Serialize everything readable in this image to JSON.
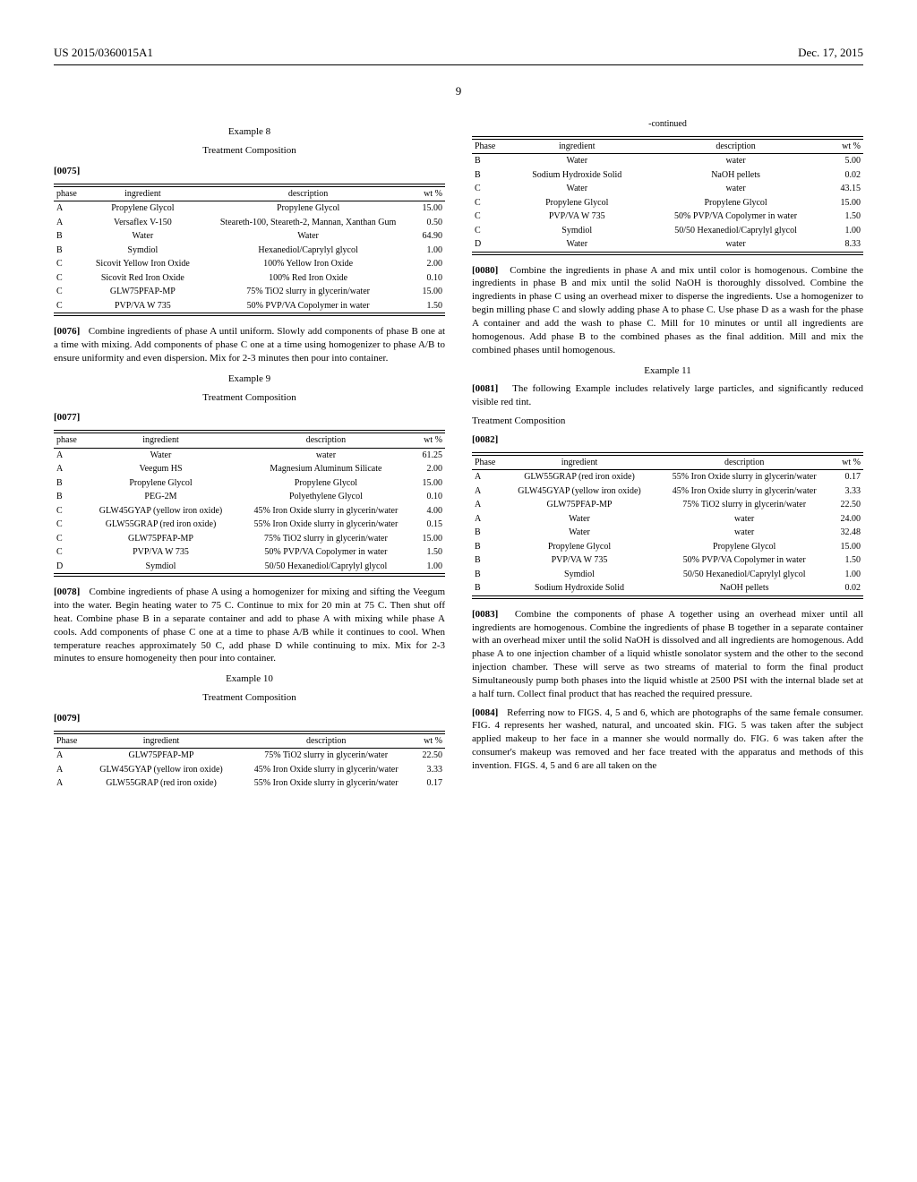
{
  "header": {
    "pub_number": "US 2015/0360015A1",
    "date": "Dec. 17, 2015",
    "page_number": "9"
  },
  "col1": {
    "ex8": {
      "title": "Example 8",
      "sub": "Treatment Composition",
      "para_num": "[0075]",
      "headers": [
        "phase",
        "ingredient",
        "description",
        "wt %"
      ],
      "rows": [
        [
          "A",
          "Propylene Glycol",
          "Propylene Glycol",
          "15.00"
        ],
        [
          "A",
          "Versaflex V-150",
          "Steareth-100, Steareth-2, Mannan, Xanthan Gum",
          "0.50"
        ],
        [
          "B",
          "Water",
          "Water",
          "64.90"
        ],
        [
          "B",
          "Symdiol",
          "Hexanediol/Caprylyl glycol",
          "1.00"
        ],
        [
          "C",
          "Sicovit Yellow Iron Oxide",
          "100% Yellow Iron Oxide",
          "2.00"
        ],
        [
          "C",
          "Sicovit Red Iron Oxide",
          "100% Red Iron Oxide",
          "0.10"
        ],
        [
          "C",
          "GLW75PFAP-MP",
          "75% TiO2 slurry in glycerin/water",
          "15.00"
        ],
        [
          "C",
          "PVP/VA W 735",
          "50% PVP/VA Copolymer in water",
          "1.50"
        ]
      ],
      "para0076_num": "[0076]",
      "para0076": "Combine ingredients of phase A until uniform. Slowly add components of phase B one at a time with mixing. Add components of phase C one at a time using homogenizer to phase A/B to ensure uniformity and even dispersion. Mix for 2-3 minutes then pour into container."
    },
    "ex9": {
      "title": "Example 9",
      "sub": "Treatment Composition",
      "para_num": "[0077]",
      "headers": [
        "phase",
        "ingredient",
        "description",
        "wt %"
      ],
      "rows": [
        [
          "A",
          "Water",
          "water",
          "61.25"
        ],
        [
          "A",
          "Veegum HS",
          "Magnesium Aluminum Silicate",
          "2.00"
        ],
        [
          "B",
          "Propylene Glycol",
          "Propylene Glycol",
          "15.00"
        ],
        [
          "B",
          "PEG-2M",
          "Polyethylene Glycol",
          "0.10"
        ],
        [
          "C",
          "GLW45GYAP (yellow iron oxide)",
          "45% Iron Oxide slurry in glycerin/water",
          "4.00"
        ],
        [
          "C",
          "GLW55GRAP (red iron oxide)",
          "55% Iron Oxide slurry in glycerin/water",
          "0.15"
        ],
        [
          "C",
          "GLW75PFAP-MP",
          "75% TiO2 slurry in glycerin/water",
          "15.00"
        ],
        [
          "C",
          "PVP/VA W 735",
          "50% PVP/VA Copolymer in water",
          "1.50"
        ],
        [
          "D",
          "Symdiol",
          "50/50 Hexanediol/Caprylyl glycol",
          "1.00"
        ]
      ],
      "para0078_num": "[0078]",
      "para0078": "Combine ingredients of phase A using a homogenizer for mixing and sifting the Veegum into the water. Begin heating water to 75 C. Continue to mix for 20 min at 75 C. Then shut off heat. Combine phase B in a separate container and add to phase A with mixing while phase A cools. Add components of phase C one at a time to phase A/B while it continues to cool. When temperature reaches approximately 50 C, add phase D while continuing to mix. Mix for 2-3 minutes to ensure homogeneity then pour into container."
    },
    "ex10": {
      "title": "Example 10",
      "sub": "Treatment Composition",
      "para_num": "[0079]",
      "headers": [
        "Phase",
        "ingredient",
        "description",
        "wt %"
      ],
      "rows": [
        [
          "A",
          "GLW75PFAP-MP",
          "75% TiO2 slurry in glycerin/water",
          "22.50"
        ],
        [
          "A",
          "GLW45GYAP (yellow iron oxide)",
          "45% Iron Oxide slurry in glycerin/water",
          "3.33"
        ],
        [
          "A",
          "GLW55GRAP (red iron oxide)",
          "55% Iron Oxide slurry in glycerin/water",
          "0.17"
        ]
      ]
    }
  },
  "col2": {
    "cont": {
      "label": "-continued",
      "headers": [
        "Phase",
        "ingredient",
        "description",
        "wt %"
      ],
      "rows": [
        [
          "B",
          "Water",
          "water",
          "5.00"
        ],
        [
          "B",
          "Sodium Hydroxide Solid",
          "NaOH pellets",
          "0.02"
        ],
        [
          "C",
          "Water",
          "water",
          "43.15"
        ],
        [
          "C",
          "Propylene Glycol",
          "Propylene Glycol",
          "15.00"
        ],
        [
          "C",
          "PVP/VA W 735",
          "50% PVP/VA Copolymer in water",
          "1.50"
        ],
        [
          "C",
          "Symdiol",
          "50/50 Hexanediol/Caprylyl glycol",
          "1.00"
        ],
        [
          "D",
          "Water",
          "water",
          "8.33"
        ]
      ]
    },
    "para0080_num": "[0080]",
    "para0080": "Combine the ingredients in phase A and mix until color is homogenous. Combine the ingredients in phase B and mix until the solid NaOH is thoroughly dissolved. Combine the ingredients in phase C using an overhead mixer to disperse the ingredients. Use a homogenizer to begin milling phase C and slowly adding phase A to phase C. Use phase D as a wash for the phase A container and add the wash to phase C. Mill for 10 minutes or until all ingredients are homogenous. Add phase B to the combined phases as the final addition. Mill and mix the combined phases until homogenous.",
    "ex11": {
      "title": "Example 11",
      "para0081_num": "[0081]",
      "para0081": "The following Example includes relatively large particles, and significantly reduced visible red tint.",
      "sub": "Treatment Composition",
      "para_num": "[0082]",
      "headers": [
        "Phase",
        "ingredient",
        "description",
        "wt %"
      ],
      "rows": [
        [
          "A",
          "GLW55GRAP (red iron oxide)",
          "55% Iron Oxide slurry in glycerin/water",
          "0.17"
        ],
        [
          "A",
          "GLW45GYAP (yellow iron oxide)",
          "45% Iron Oxide slurry in glycerin/water",
          "3.33"
        ],
        [
          "A",
          "GLW75PFAP-MP",
          "75% TiO2 slurry in glycerin/water",
          "22.50"
        ],
        [
          "A",
          "Water",
          "water",
          "24.00"
        ],
        [
          "B",
          "Water",
          "water",
          "32.48"
        ],
        [
          "B",
          "Propylene Glycol",
          "Propylene Glycol",
          "15.00"
        ],
        [
          "B",
          "PVP/VA W 735",
          "50% PVP/VA Copolymer in water",
          "1.50"
        ],
        [
          "B",
          "Symdiol",
          "50/50 Hexanediol/Caprylyl glycol",
          "1.00"
        ],
        [
          "B",
          "Sodium Hydroxide Solid",
          "NaOH pellets",
          "0.02"
        ]
      ]
    },
    "para0083_num": "[0083]",
    "para0083": "Combine the components of phase A together using an overhead mixer until all ingredients are homogenous. Combine the ingredients of phase B together in a separate container with an overhead mixer until the solid NaOH is dissolved and all ingredients are homogenous. Add phase A to one injection chamber of a liquid whistle sonolator system and the other to the second injection chamber. These will serve as two streams of material to form the final product Simultaneously pump both phases into the liquid whistle at 2500 PSI with the internal blade set at a half turn. Collect final product that has reached the required pressure.",
    "para0084_num": "[0084]",
    "para0084": "Referring now to FIGS. 4, 5 and 6, which are photographs of the same female consumer. FIG. 4 represents her washed, natural, and uncoated skin. FIG. 5 was taken after the subject applied makeup to her face in a manner she would normally do. FIG. 6 was taken after the consumer's makeup was removed and her face treated with the apparatus and methods of this invention. FIGS. 4, 5 and 6 are all taken on the"
  }
}
